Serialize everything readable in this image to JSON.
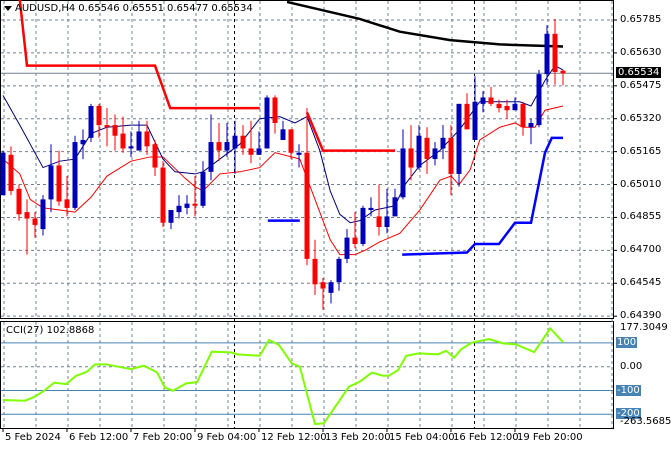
{
  "header": {
    "symbol": "AUDUSD,H4",
    "open": "0.65546",
    "high": "0.65551",
    "low": "0.65477",
    "close": "0.65534"
  },
  "colors": {
    "bull": "#0000b4",
    "bear": "#ff0000",
    "grid": "#708090",
    "cci": "#7fff00",
    "ma_upper": "#000080",
    "ma_lower": "#ff0000",
    "ma_long": "#000000",
    "stop_upper": "#ff0000",
    "stop_lower": "#0000ff",
    "level_box": "#4682b4"
  },
  "chart_data": [
    {
      "type": "candlestick",
      "title": "AUDUSD,H4",
      "ylim": [
        0.6439,
        0.65785
      ],
      "grid": true,
      "y_ticks": [
        "0.65785",
        "0.65630",
        "0.65475",
        "0.65320",
        "0.65165",
        "0.65010",
        "0.64855",
        "0.64700",
        "0.64545",
        "0.64390"
      ],
      "current_price": "0.65534",
      "x_ticks": [
        {
          "label": "5 Feb 2024",
          "index": 0
        },
        {
          "label": "6 Feb 12:00",
          "index": 8
        },
        {
          "label": "7 Feb 20:00",
          "index": 16
        },
        {
          "label": "9 Feb 04:00",
          "index": 24
        },
        {
          "label": "12 Feb 12:00",
          "index": 32
        },
        {
          "label": "13 Feb 20:00",
          "index": 40
        },
        {
          "label": "15 Feb 04:00",
          "index": 48
        },
        {
          "label": "16 Feb 12:00",
          "index": 56
        },
        {
          "label": "19 Feb 20:00",
          "index": 64
        }
      ],
      "separators": [
        29,
        59
      ],
      "candles_ohlc": [
        [
          0.6496,
          0.6517,
          0.6496,
          0.6516
        ],
        [
          0.6515,
          0.6519,
          0.6496,
          0.6498
        ],
        [
          0.6499,
          0.6501,
          0.6484,
          0.6487
        ],
        [
          0.6488,
          0.6494,
          0.6468,
          0.6485
        ],
        [
          0.6485,
          0.6488,
          0.6476,
          0.6482
        ],
        [
          0.648,
          0.6496,
          0.6477,
          0.6494
        ],
        [
          0.6494,
          0.652,
          0.6488,
          0.651
        ],
        [
          0.651,
          0.6517,
          0.6491,
          0.6493
        ],
        [
          0.6494,
          0.6505,
          0.6486,
          0.649
        ],
        [
          0.649,
          0.6524,
          0.6489,
          0.6521
        ],
        [
          0.652,
          0.6527,
          0.6513,
          0.6522
        ],
        [
          0.6523,
          0.6539,
          0.6521,
          0.6538
        ],
        [
          0.6538,
          0.6539,
          0.6523,
          0.6529
        ],
        [
          0.6529,
          0.6537,
          0.6519,
          0.6528
        ],
        [
          0.6529,
          0.6534,
          0.6517,
          0.6524
        ],
        [
          0.6525,
          0.6533,
          0.6516,
          0.6518
        ],
        [
          0.6518,
          0.6526,
          0.6514,
          0.6519
        ],
        [
          0.6517,
          0.6531,
          0.6517,
          0.6526
        ],
        [
          0.6526,
          0.6531,
          0.6515,
          0.6519
        ],
        [
          0.652,
          0.6522,
          0.6505,
          0.6509
        ],
        [
          0.6509,
          0.6512,
          0.6481,
          0.6483
        ],
        [
          0.6483,
          0.6489,
          0.648,
          0.6489
        ],
        [
          0.6488,
          0.6496,
          0.6485,
          0.6491
        ],
        [
          0.649,
          0.6496,
          0.6487,
          0.6492
        ],
        [
          0.6492,
          0.6505,
          0.6486,
          0.6491
        ],
        [
          0.6491,
          0.6512,
          0.649,
          0.6507
        ],
        [
          0.6507,
          0.6534,
          0.6503,
          0.6521
        ],
        [
          0.6521,
          0.653,
          0.6512,
          0.6517
        ],
        [
          0.6517,
          0.653,
          0.6514,
          0.6521
        ],
        [
          0.6518,
          0.6531,
          0.6506,
          0.6524
        ],
        [
          0.6524,
          0.6529,
          0.6515,
          0.6518
        ],
        [
          0.6518,
          0.6531,
          0.6511,
          0.6515
        ],
        [
          0.6515,
          0.6526,
          0.6515,
          0.6518
        ],
        [
          0.6518,
          0.6543,
          0.6518,
          0.6542
        ],
        [
          0.6542,
          0.6543,
          0.6525,
          0.653
        ],
        [
          0.6522,
          0.6531,
          0.6522,
          0.6527
        ],
        [
          0.6527,
          0.6527,
          0.6513,
          0.6516
        ],
        [
          0.6515,
          0.652,
          0.6509,
          0.6516
        ],
        [
          0.6516,
          0.6537,
          0.6463,
          0.6466
        ],
        [
          0.6466,
          0.6475,
          0.6449,
          0.6454
        ],
        [
          0.6455,
          0.6457,
          0.6442,
          0.6452
        ],
        [
          0.645,
          0.6456,
          0.6445,
          0.6455
        ],
        [
          0.6455,
          0.6467,
          0.6451,
          0.6466
        ],
        [
          0.6466,
          0.648,
          0.6464,
          0.6476
        ],
        [
          0.6476,
          0.6488,
          0.6471,
          0.6473
        ],
        [
          0.6473,
          0.6491,
          0.6472,
          0.649
        ],
        [
          0.6489,
          0.6495,
          0.6486,
          0.649
        ],
        [
          0.6486,
          0.6501,
          0.6477,
          0.6481
        ],
        [
          0.6481,
          0.6499,
          0.6478,
          0.6486
        ],
        [
          0.6486,
          0.6499,
          0.6486,
          0.6495
        ],
        [
          0.6495,
          0.6527,
          0.6494,
          0.6518
        ],
        [
          0.6518,
          0.6529,
          0.6503,
          0.6509
        ],
        [
          0.6509,
          0.6529,
          0.6508,
          0.6524
        ],
        [
          0.6523,
          0.6528,
          0.6506,
          0.6513
        ],
        [
          0.6513,
          0.6521,
          0.651,
          0.6518
        ],
        [
          0.6518,
          0.6529,
          0.6513,
          0.6523
        ],
        [
          0.6523,
          0.6529,
          0.6496,
          0.6506
        ],
        [
          0.6506,
          0.6539,
          0.65,
          0.6539
        ],
        [
          0.6539,
          0.6544,
          0.6527,
          0.6527
        ],
        [
          0.6522,
          0.6552,
          0.6522,
          0.654
        ],
        [
          0.6539,
          0.6545,
          0.6535,
          0.6542
        ],
        [
          0.6542,
          0.6547,
          0.6538,
          0.6539
        ],
        [
          0.6539,
          0.6541,
          0.6535,
          0.6537
        ],
        [
          0.6538,
          0.6541,
          0.6532,
          0.6536
        ],
        [
          0.6536,
          0.6542,
          0.6536,
          0.6539
        ],
        [
          0.6539,
          0.654,
          0.6524,
          0.6528
        ],
        [
          0.6528,
          0.6532,
          0.652,
          0.653
        ],
        [
          0.6529,
          0.6555,
          0.6528,
          0.6553
        ],
        [
          0.6553,
          0.6576,
          0.6548,
          0.6572
        ],
        [
          0.6572,
          0.6579,
          0.6548,
          0.6554
        ],
        [
          0.65546,
          0.65551,
          0.65477,
          0.65534
        ]
      ],
      "overlays": {
        "ma_long": [
          [
            35.5,
            0.6587
          ],
          [
            44.6,
            0.6579
          ],
          [
            49.6,
            0.6573
          ],
          [
            55.9,
            0.6569
          ],
          [
            62.1,
            0.6567
          ],
          [
            70,
            0.6566
          ]
        ],
        "ma_upper": [
          [
            0,
            0.6543
          ],
          [
            2.1,
            0.6529
          ],
          [
            5,
            0.6509
          ],
          [
            7.1,
            0.6512
          ],
          [
            9,
            0.6513
          ],
          [
            11,
            0.6525
          ],
          [
            13,
            0.6528
          ],
          [
            16,
            0.6529
          ],
          [
            18,
            0.6529
          ],
          [
            20,
            0.6513
          ],
          [
            21.5,
            0.6507
          ],
          [
            24,
            0.6506
          ],
          [
            25,
            0.6507
          ],
          [
            27.1,
            0.6513
          ],
          [
            29.6,
            0.652
          ],
          [
            32.1,
            0.6532
          ],
          [
            34.6,
            0.6533
          ],
          [
            36.5,
            0.653
          ],
          [
            38,
            0.6533
          ],
          [
            39.6,
            0.6517
          ],
          [
            40.9,
            0.6498
          ],
          [
            42.1,
            0.6487
          ],
          [
            43.4,
            0.6483
          ],
          [
            44.6,
            0.6484
          ],
          [
            46.5,
            0.6489
          ],
          [
            49,
            0.6491
          ],
          [
            50.25,
            0.6501
          ],
          [
            52.1,
            0.651
          ],
          [
            54.6,
            0.6517
          ],
          [
            57.1,
            0.6527
          ],
          [
            59.6,
            0.654
          ],
          [
            64.6,
            0.654
          ],
          [
            66,
            0.6538
          ],
          [
            67.75,
            0.655
          ],
          [
            69,
            0.6557
          ],
          [
            70,
            0.6555
          ]
        ],
        "ma_lower": [
          [
            0,
            0.6513
          ],
          [
            2.1,
            0.6506
          ],
          [
            3.4,
            0.6494
          ],
          [
            5,
            0.649
          ],
          [
            7.1,
            0.6489
          ],
          [
            9,
            0.6488
          ],
          [
            11,
            0.6495
          ],
          [
            13,
            0.6505
          ],
          [
            16,
            0.6512
          ],
          [
            18.4,
            0.6514
          ],
          [
            20,
            0.6514
          ],
          [
            22.75,
            0.6504
          ],
          [
            24,
            0.65
          ],
          [
            25,
            0.6498
          ],
          [
            27.1,
            0.6506
          ],
          [
            29.6,
            0.6507
          ],
          [
            32.1,
            0.6509
          ],
          [
            34,
            0.6516
          ],
          [
            37.1,
            0.6513
          ],
          [
            38,
            0.6504
          ],
          [
            39.6,
            0.6488
          ],
          [
            40.9,
            0.6475
          ],
          [
            42.1,
            0.6468
          ],
          [
            44,
            0.6468
          ],
          [
            45.25,
            0.647
          ],
          [
            47.1,
            0.6474
          ],
          [
            49.6,
            0.6478
          ],
          [
            52.1,
            0.6489
          ],
          [
            54.6,
            0.6503
          ],
          [
            56,
            0.6505
          ],
          [
            57,
            0.6501
          ],
          [
            58.4,
            0.6508
          ],
          [
            59.6,
            0.6522
          ],
          [
            62.1,
            0.6528
          ],
          [
            64,
            0.653
          ],
          [
            65,
            0.6528
          ],
          [
            66.5,
            0.6528
          ],
          [
            67.75,
            0.6536
          ],
          [
            70,
            0.6538
          ]
        ],
        "stop_upper": [
          [
            [
              2.1,
              0.6588
            ],
            [
              3,
              0.6557
            ],
            [
              19,
              0.6557
            ],
            [
              20.9,
              0.6537
            ],
            [
              32.1,
              0.6537
            ]
          ],
          [
            [
              38,
              0.6535
            ],
            [
              40,
              0.6517
            ],
            [
              49,
              0.6517
            ]
          ]
        ],
        "stop_lower": [
          [
            [
              33.1,
              0.6484
            ],
            [
              37.1,
              0.6484
            ]
          ],
          [
            [
              49.9,
              0.6468
            ],
            [
              58,
              0.6469
            ],
            [
              59,
              0.6473
            ],
            [
              62,
              0.6473
            ],
            [
              64,
              0.6483
            ],
            [
              66,
              0.6483
            ],
            [
              67.75,
              0.6516
            ],
            [
              68.6,
              0.6523
            ],
            [
              70,
              0.6523
            ]
          ]
        ]
      }
    },
    {
      "type": "line",
      "title": "CCI(27) 102.8868",
      "ylim": [
        -263.5685,
        177.3049
      ],
      "max_label": "177.3049",
      "min_label": "-263.5685",
      "levels": [
        {
          "label": "100",
          "value": 100
        },
        {
          "label": "0.00",
          "value": 0
        },
        {
          "label": "-100",
          "value": -100
        },
        {
          "label": "-200",
          "value": -200
        }
      ],
      "series": [
        [
          0,
          -140
        ],
        [
          2.75,
          -143
        ],
        [
          3.9,
          -127
        ],
        [
          5.1,
          -102
        ],
        [
          6.4,
          -67
        ],
        [
          7.9,
          -73
        ],
        [
          9.1,
          -39
        ],
        [
          10.5,
          -21
        ],
        [
          11.5,
          10
        ],
        [
          12.9,
          10
        ],
        [
          14.4,
          0
        ],
        [
          16,
          -10
        ],
        [
          17.6,
          4
        ],
        [
          19.25,
          -24
        ],
        [
          20.25,
          -88
        ],
        [
          21.25,
          -101
        ],
        [
          22.9,
          -70
        ],
        [
          24.25,
          -65
        ],
        [
          26.1,
          63
        ],
        [
          28.5,
          60
        ],
        [
          29.25,
          52
        ],
        [
          32.1,
          46
        ],
        [
          33.25,
          112
        ],
        [
          34.5,
          91
        ],
        [
          36.1,
          14
        ],
        [
          37.1,
          0
        ],
        [
          39,
          -241
        ],
        [
          40.1,
          -238
        ],
        [
          43.25,
          -84
        ],
        [
          44.6,
          -63
        ],
        [
          46.1,
          -25
        ],
        [
          47.5,
          -38
        ],
        [
          48.25,
          -38
        ],
        [
          49.4,
          -14
        ],
        [
          50.4,
          46
        ],
        [
          52,
          56
        ],
        [
          54.4,
          52
        ],
        [
          55.4,
          67
        ],
        [
          56.4,
          38
        ],
        [
          57.25,
          73
        ],
        [
          58.6,
          101
        ],
        [
          60.75,
          116
        ],
        [
          62.5,
          98
        ],
        [
          64.1,
          94
        ],
        [
          66.4,
          61
        ],
        [
          68.4,
          161
        ],
        [
          70,
          102.89
        ]
      ]
    }
  ]
}
